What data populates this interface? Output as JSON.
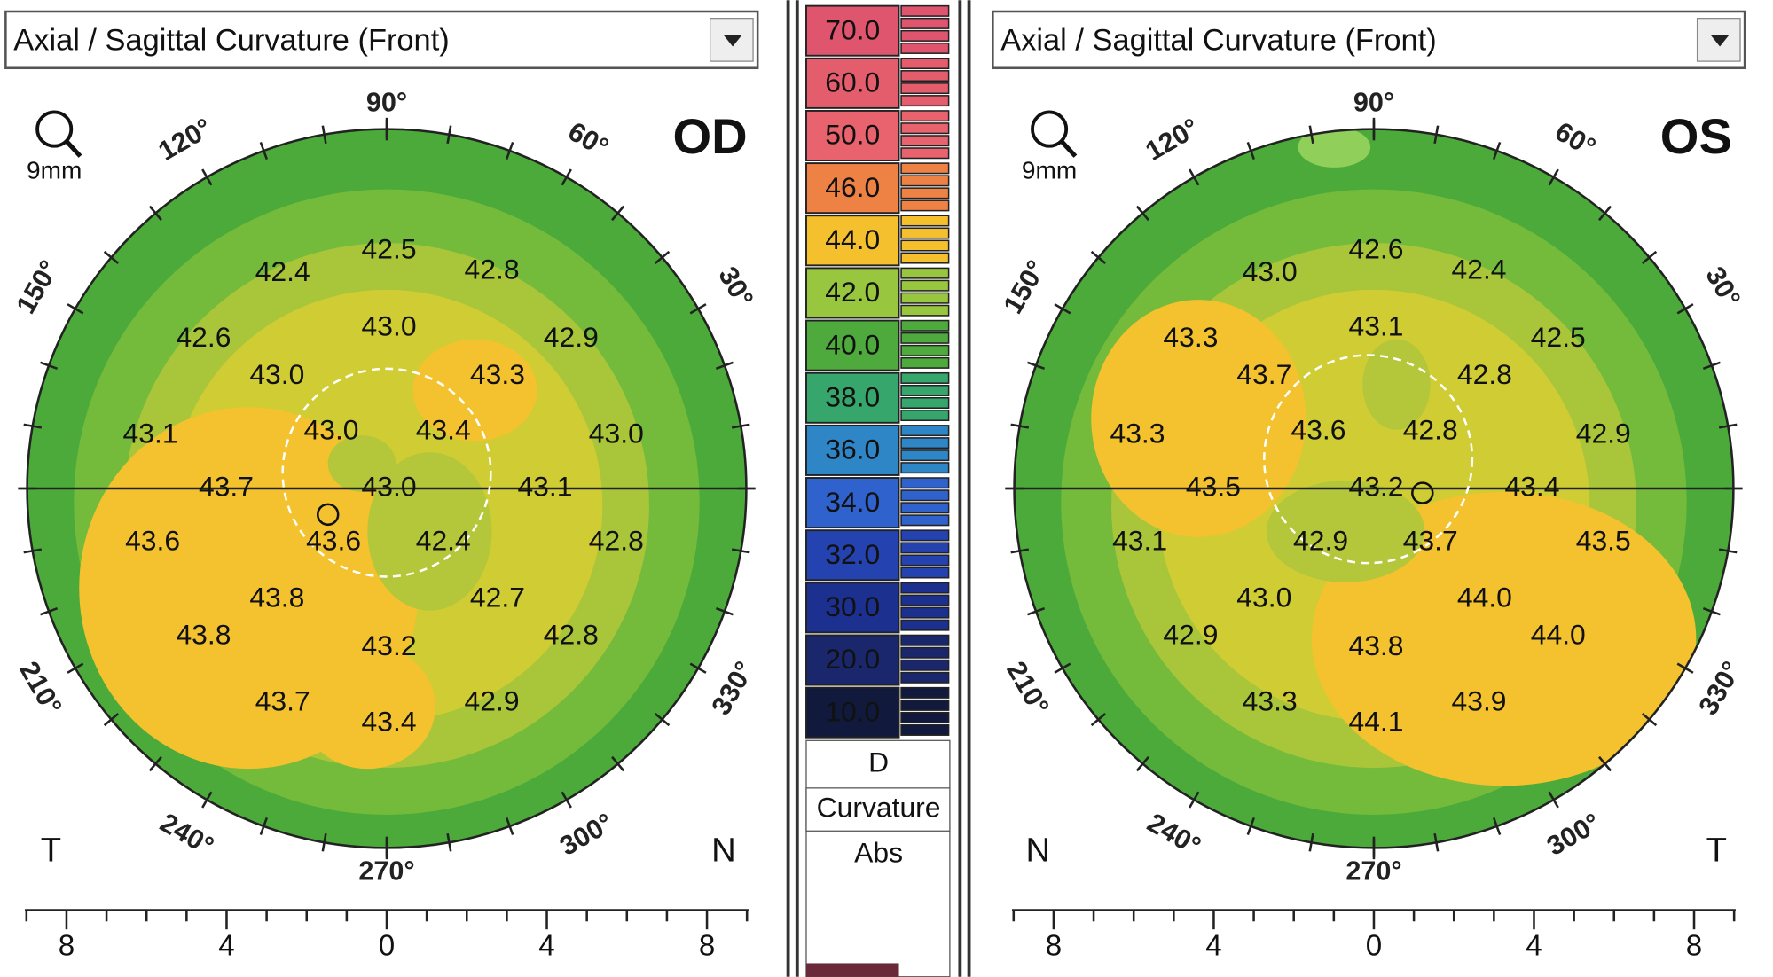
{
  "panels": [
    {
      "dropdown": "Axial / Sagittal Curvature (Front)",
      "eye": "OD",
      "zoom": "9mm",
      "angles": [
        "90°",
        "60°",
        "30°",
        "330°",
        "300°",
        "270°",
        "240°",
        "210°",
        "150°",
        "120°"
      ],
      "side_left": "T",
      "side_right": "N",
      "values": [
        "42.5",
        "42.4",
        "42.8",
        "42.6",
        "43.0",
        "42.9",
        "43.0",
        "43.3",
        "43.1",
        "43.0",
        "43.4",
        "43.0",
        "43.7",
        "43.0",
        "43.1",
        "43.6",
        "43.6",
        "42.4",
        "42.8",
        "43.8",
        "42.7",
        "43.8",
        "43.2",
        "42.8",
        "43.7",
        "43.4",
        "42.9"
      ],
      "scale": [
        "8",
        "4",
        "0",
        "4",
        "8"
      ]
    },
    {
      "dropdown": "Axial / Sagittal Curvature (Front)",
      "eye": "OS",
      "zoom": "9mm",
      "angles": [
        "90°",
        "60°",
        "30°",
        "330°",
        "300°",
        "270°",
        "240°",
        "210°",
        "150°",
        "120°"
      ],
      "side_left": "N",
      "side_right": "T",
      "values": [
        "42.6",
        "43.0",
        "42.4",
        "43.3",
        "43.1",
        "42.5",
        "43.7",
        "42.8",
        "43.3",
        "43.6",
        "42.8",
        "42.9",
        "43.5",
        "43.2",
        "43.4",
        "43.1",
        "42.9",
        "43.7",
        "43.5",
        "43.0",
        "44.0",
        "42.9",
        "43.8",
        "44.0",
        "43.3",
        "44.1",
        "43.9"
      ],
      "scale": [
        "8",
        "4",
        "0",
        "4",
        "8"
      ]
    }
  ],
  "color_scale": {
    "labels": [
      "70.0",
      "60.0",
      "50.0",
      "46.0",
      "44.0",
      "42.0",
      "40.0",
      "38.0",
      "36.0",
      "34.0",
      "32.0",
      "30.0",
      "20.0",
      "10.0"
    ],
    "unit": "D",
    "quantity": "Curvature",
    "mode": "Abs"
  }
}
